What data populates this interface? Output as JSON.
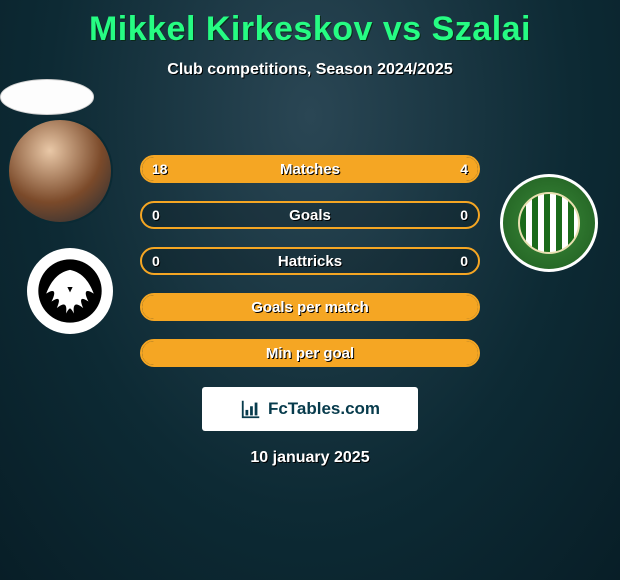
{
  "header": {
    "title": "Mikkel Kirkeskov vs Szalai",
    "subtitle": "Club competitions, Season 2024/2025"
  },
  "stats": {
    "rows": [
      {
        "label": "Matches",
        "left": "18",
        "right": "4",
        "left_pct": 78,
        "right_pct": 22
      },
      {
        "label": "Goals",
        "left": "0",
        "right": "0",
        "left_pct": 0,
        "right_pct": 0
      },
      {
        "label": "Hattricks",
        "left": "0",
        "right": "0",
        "left_pct": 0,
        "right_pct": 0
      },
      {
        "label": "Goals per match",
        "left": "",
        "right": "",
        "left_pct": 100,
        "right_pct": 0
      },
      {
        "label": "Min per goal",
        "left": "",
        "right": "",
        "left_pct": 100,
        "right_pct": 0
      }
    ],
    "bar_color": "#f5a623",
    "bar_border_color": "#f5a623",
    "label_fontsize": 15
  },
  "brand": {
    "text": "FcTables.com"
  },
  "date": "10 january 2025",
  "left_side": {
    "player_name": "Mikkel Kirkeskov",
    "club_crest": "eagle"
  },
  "right_side": {
    "player_name": "Szalai",
    "club_crest": "ferencvaros"
  },
  "colors": {
    "title": "#26fc83",
    "background_center": "#2a4654",
    "background_edge": "#081e27",
    "text": "#ffffff"
  }
}
